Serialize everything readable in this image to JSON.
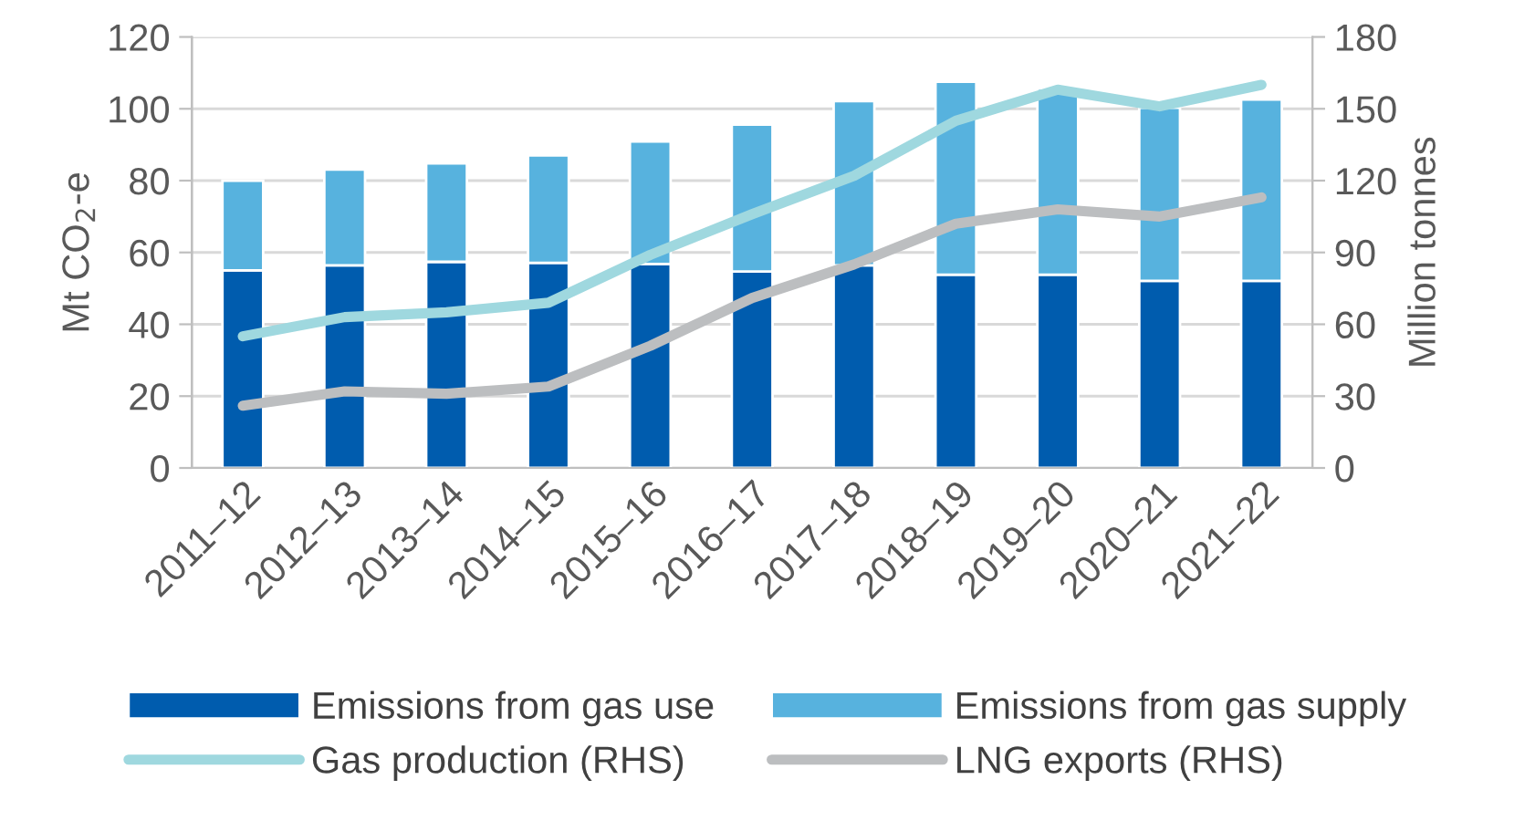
{
  "chart_data": {
    "type": "bar",
    "stacked": true,
    "categories": [
      "2011–12",
      "2012–13",
      "2013–14",
      "2014–15",
      "2015–16",
      "2016–17",
      "2017–18",
      "2018–19",
      "2019–20",
      "2020–21",
      "2021–22"
    ],
    "ylabel": "Mt CO$_{2}$-e",
    "y2label": "Million tonnes",
    "ylim": [
      0,
      120
    ],
    "yticks": [
      0,
      20,
      40,
      60,
      80,
      100,
      120
    ],
    "y2lim": [
      0,
      180
    ],
    "y2ticks": [
      0,
      30,
      60,
      90,
      120,
      150,
      180
    ],
    "grid": "y",
    "legend": "bottom",
    "series": [
      {
        "name": "Emissions from gas use",
        "color": "#005cae",
        "values": [
          55.0,
          56.4,
          57.4,
          57.1,
          56.8,
          54.7,
          56.4,
          53.8,
          53.8,
          52.1,
          52.1
        ]
      },
      {
        "name": "Emissions from gas supply",
        "color": "#57b2de",
        "values": [
          25.0,
          26.7,
          27.4,
          29.9,
          34.1,
          40.9,
          45.7,
          53.7,
          51.8,
          48.2,
          50.5
        ]
      },
      {
        "name": "Gas production (RHS)",
        "type": "line",
        "axis": "y2",
        "color": "#9fd8df",
        "values": [
          55,
          63,
          65,
          69,
          89,
          106,
          122,
          145,
          158,
          151,
          160
        ]
      },
      {
        "name": "LNG exports (RHS)",
        "type": "line",
        "axis": "y2",
        "color": "#bcbec0",
        "values": [
          26,
          32,
          31,
          34,
          51,
          71,
          85,
          102,
          108,
          105,
          113
        ]
      }
    ]
  }
}
